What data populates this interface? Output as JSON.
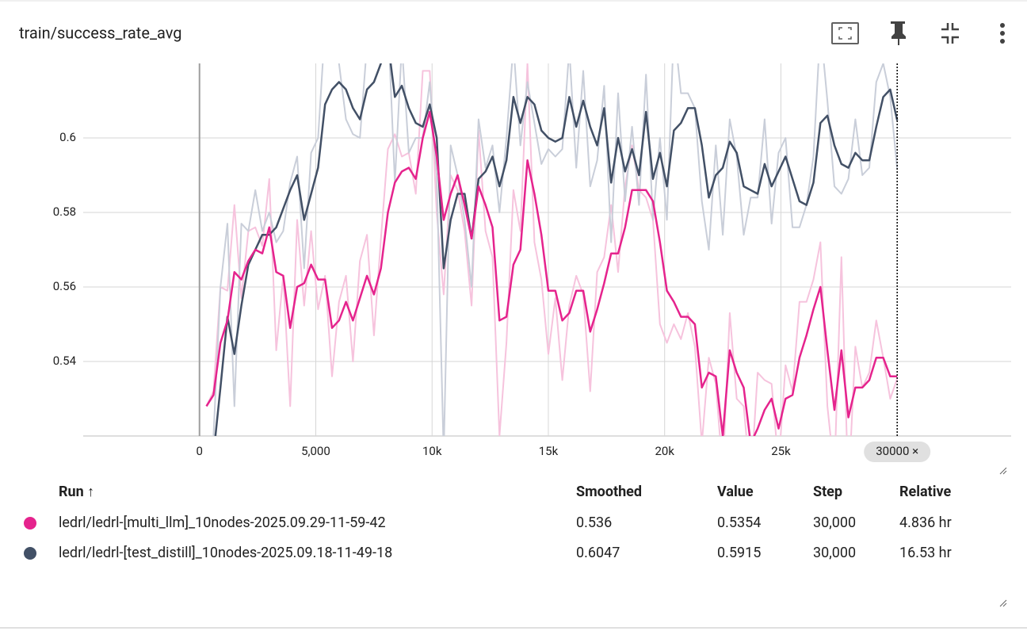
{
  "header": {
    "title": "train/success_rate_avg"
  },
  "chart_data": {
    "type": "line",
    "x": [
      300,
      600,
      900,
      1200,
      1500,
      1800,
      2100,
      2400,
      2700,
      3000,
      3300,
      3600,
      3900,
      4200,
      4500,
      4800,
      5100,
      5400,
      5700,
      6000,
      6300,
      6600,
      6900,
      7200,
      7500,
      7800,
      8100,
      8400,
      8700,
      9000,
      9300,
      9600,
      9900,
      10200,
      10500,
      10800,
      11100,
      11400,
      11700,
      12000,
      12300,
      12600,
      12900,
      13200,
      13500,
      13800,
      14100,
      14400,
      14700,
      15000,
      15300,
      15600,
      15900,
      16200,
      16500,
      16800,
      17100,
      17400,
      17700,
      18000,
      18300,
      18600,
      18900,
      19200,
      19500,
      19800,
      20100,
      20400,
      20700,
      21000,
      21300,
      21600,
      21900,
      22200,
      22500,
      22800,
      23100,
      23400,
      23700,
      24000,
      24300,
      24600,
      24900,
      25200,
      25500,
      25800,
      26100,
      26400,
      26700,
      27000,
      27300,
      27600,
      27900,
      28200,
      28500,
      28800,
      29100,
      29400,
      29700,
      30000
    ],
    "series": [
      {
        "color": "#f6c3dd",
        "values": [
          0.528,
          0.532,
          0.56,
          0.559,
          0.582,
          0.557,
          0.575,
          0.576,
          0.571,
          0.589,
          0.543,
          0.563,
          0.528,
          0.578,
          0.555,
          0.575,
          0.554,
          0.563,
          0.536,
          0.556,
          0.563,
          0.54,
          0.567,
          0.574,
          0.547,
          0.573,
          0.597,
          0.601,
          0.595,
          0.596,
          0.585,
          0.618,
          0.618,
          0.58,
          0.558,
          0.59,
          0.586,
          0.575,
          0.555,
          0.602,
          0.575,
          0.568,
          0.52,
          0.545,
          0.586,
          0.575,
          0.62,
          0.572,
          0.562,
          0.542,
          0.557,
          0.535,
          0.555,
          0.563,
          0.558,
          0.532,
          0.564,
          0.568,
          0.582,
          0.564,
          0.587,
          0.598,
          0.586,
          0.584,
          0.578,
          0.55,
          0.545,
          0.55,
          0.546,
          0.553,
          0.544,
          0.518,
          0.541,
          0.534,
          0.51,
          0.553,
          0.53,
          0.528,
          0.507,
          0.537,
          0.535,
          0.534,
          0.512,
          0.539,
          0.532,
          0.556,
          0.556,
          0.562,
          0.572,
          0.528,
          0.51,
          0.568,
          0.505,
          0.544,
          0.533,
          0.537,
          0.551,
          0.541,
          0.53,
          0.5354
        ]
      },
      {
        "color": "#c9ced9",
        "values": [
          0.505,
          0.52,
          0.56,
          0.577,
          0.528,
          0.577,
          0.575,
          0.586,
          0.575,
          0.58,
          0.572,
          0.575,
          0.588,
          0.595,
          0.565,
          0.596,
          0.6,
          0.63,
          0.624,
          0.62,
          0.605,
          0.601,
          0.6,
          0.625,
          0.623,
          0.63,
          0.632,
          0.588,
          0.625,
          0.596,
          0.6,
          0.6,
          0.615,
          0.59,
          0.515,
          0.598,
          0.59,
          0.578,
          0.56,
          0.605,
          0.592,
          0.598,
          0.58,
          0.6,
          0.625,
          0.598,
          0.615,
          0.604,
          0.593,
          0.597,
          0.595,
          0.597,
          0.624,
          0.592,
          0.618,
          0.587,
          0.594,
          0.614,
          0.572,
          0.612,
          0.583,
          0.603,
          0.582,
          0.617,
          0.578,
          0.6,
          0.578,
          0.63,
          0.612,
          0.612,
          0.608,
          0.583,
          0.57,
          0.598,
          0.574,
          0.605,
          0.595,
          0.574,
          0.584,
          0.584,
          0.605,
          0.577,
          0.596,
          0.6,
          0.576,
          0.576,
          0.582,
          0.595,
          0.63,
          0.61,
          0.587,
          0.585,
          0.589,
          0.605,
          0.59,
          0.592,
          0.615,
          0.62,
          0.611,
          0.5915
        ]
      },
      {
        "color": "#425066",
        "values": [
          0.505,
          0.515,
          0.533,
          0.552,
          0.542,
          0.555,
          0.566,
          0.57,
          0.574,
          0.574,
          0.576,
          0.581,
          0.586,
          0.59,
          0.578,
          0.585,
          0.592,
          0.609,
          0.613,
          0.615,
          0.613,
          0.608,
          0.605,
          0.613,
          0.615,
          0.62,
          0.626,
          0.611,
          0.614,
          0.608,
          0.604,
          0.603,
          0.609,
          0.6,
          0.565,
          0.578,
          0.585,
          0.585,
          0.573,
          0.589,
          0.591,
          0.595,
          0.587,
          0.594,
          0.611,
          0.604,
          0.611,
          0.609,
          0.602,
          0.6,
          0.599,
          0.6,
          0.611,
          0.603,
          0.61,
          0.603,
          0.598,
          0.608,
          0.588,
          0.6,
          0.591,
          0.597,
          0.59,
          0.607,
          0.589,
          0.596,
          0.587,
          0.602,
          0.604,
          0.608,
          0.608,
          0.598,
          0.584,
          0.59,
          0.592,
          0.599,
          0.596,
          0.587,
          0.586,
          0.585,
          0.593,
          0.587,
          0.591,
          0.595,
          0.589,
          0.583,
          0.582,
          0.588,
          0.604,
          0.606,
          0.598,
          0.593,
          0.592,
          0.596,
          0.594,
          0.594,
          0.603,
          0.611,
          0.613,
          0.6047
        ]
      },
      {
        "color": "#e5238d",
        "values": [
          0.528,
          0.531,
          0.545,
          0.551,
          0.564,
          0.562,
          0.567,
          0.57,
          0.569,
          0.576,
          0.564,
          0.563,
          0.549,
          0.56,
          0.561,
          0.566,
          0.562,
          0.562,
          0.549,
          0.551,
          0.556,
          0.551,
          0.557,
          0.563,
          0.558,
          0.565,
          0.58,
          0.588,
          0.591,
          0.592,
          0.589,
          0.6,
          0.607,
          0.595,
          0.578,
          0.585,
          0.59,
          0.582,
          0.573,
          0.587,
          0.582,
          0.576,
          0.551,
          0.552,
          0.566,
          0.57,
          0.594,
          0.585,
          0.574,
          0.559,
          0.559,
          0.551,
          0.553,
          0.559,
          0.559,
          0.548,
          0.554,
          0.561,
          0.569,
          0.569,
          0.576,
          0.586,
          0.586,
          0.586,
          0.583,
          0.572,
          0.559,
          0.556,
          0.552,
          0.552,
          0.55,
          0.533,
          0.537,
          0.536,
          0.52,
          0.543,
          0.537,
          0.533,
          0.518,
          0.522,
          0.527,
          0.53,
          0.522,
          0.53,
          0.531,
          0.541,
          0.547,
          0.554,
          0.56,
          0.543,
          0.527,
          0.543,
          0.525,
          0.533,
          0.533,
          0.535,
          0.541,
          0.541,
          0.536,
          0.536
        ]
      }
    ],
    "xlim": [
      -5000,
      34900
    ],
    "ylim": [
      0.52,
      0.62
    ],
    "xticks": [
      {
        "value": 0,
        "label": "0"
      },
      {
        "value": 5000,
        "label": "5,000"
      },
      {
        "value": 10000,
        "label": "10k"
      },
      {
        "value": 15000,
        "label": "15k"
      },
      {
        "value": 20000,
        "label": "20k"
      },
      {
        "value": 25000,
        "label": "25k"
      }
    ],
    "yticks": [
      0.54,
      0.56,
      0.58,
      0.6
    ],
    "grid": true,
    "cursor_label": "30000 ×"
  },
  "table": {
    "headers": [
      "Run ↑",
      "Smoothed",
      "Value",
      "Step",
      "Relative"
    ],
    "rows": [
      {
        "color": "#e5238d",
        "cells": [
          "ledrl/ledrl-[multi_llm]_10nodes-2025.09.29-11-59-42",
          "0.536",
          "0.5354",
          "30,000",
          "4.836 hr"
        ]
      },
      {
        "color": "#425066",
        "cells": [
          "ledrl/ledrl-[test_distill]_10nodes-2025.09.18-11-49-18",
          "0.6047",
          "0.5915",
          "30,000",
          "16.53 hr"
        ]
      }
    ]
  }
}
